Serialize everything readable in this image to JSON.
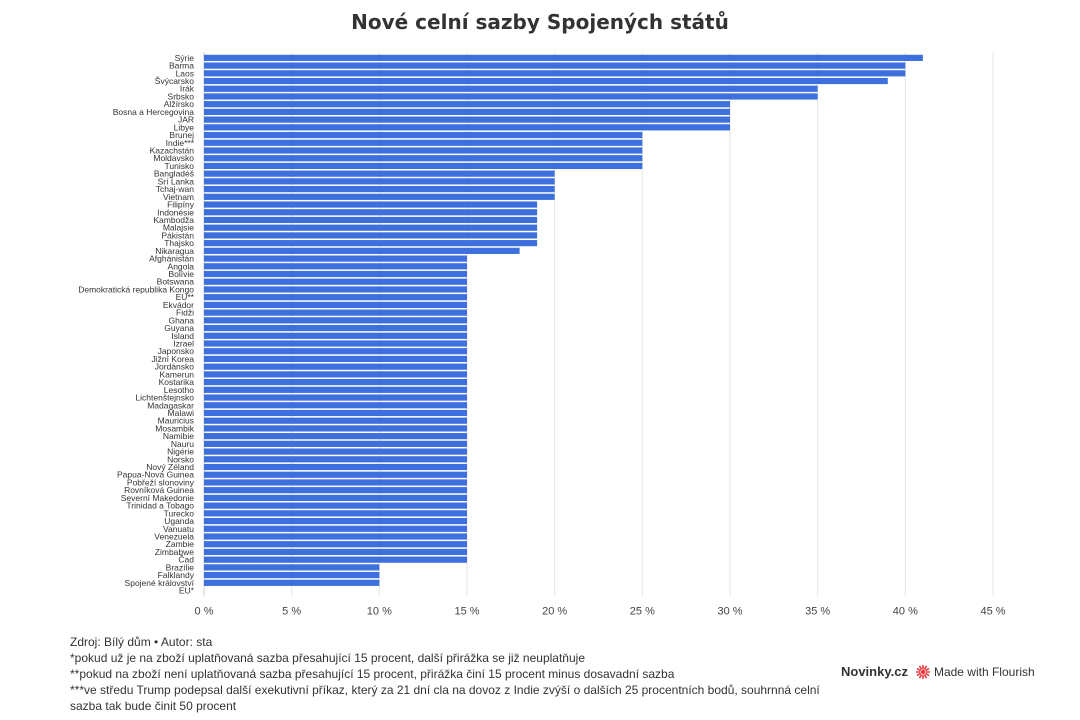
{
  "chart_data": {
    "type": "bar",
    "orientation": "horizontal",
    "title": "Nové celní sazby Spojených států",
    "xlim": [
      0,
      45
    ],
    "ticks": [
      0,
      5,
      10,
      15,
      20,
      25,
      30,
      35,
      40,
      45
    ],
    "tick_labels": [
      "0 %",
      "5 %",
      "10 %",
      "15 %",
      "20 %",
      "25 %",
      "30 %",
      "35 %",
      "40 %",
      "45 %"
    ],
    "grid": true,
    "bar_color": "#3d6fdd",
    "categories": [
      "Sýrie",
      "Barma",
      "Laos",
      "Švýcarsko",
      "Irák",
      "Srbsko",
      "Alžírsko",
      "Bosna a Hercegovina",
      "JAR",
      "Libye",
      "Brunej",
      "Indie***",
      "Kazachstán",
      "Moldavsko",
      "Tunisko",
      "Bangladéš",
      "Srí Lanka",
      "Tchaj-wan",
      "Vietnam",
      "Filipíny",
      "Indonésie",
      "Kambodža",
      "Malajsie",
      "Pákistán",
      "Thajsko",
      "Nikaragua",
      "Afghánistán",
      "Angola",
      "Bolívie",
      "Botswana",
      "Demokratická republika Kongo",
      "EU**",
      "Ekvádor",
      "Fidži",
      "Ghana",
      "Guyana",
      "Island",
      "Izrael",
      "Japonsko",
      "Jižní Korea",
      "Jordánsko",
      "Kamerun",
      "Kostarika",
      "Lesotho",
      "Lichtenštejnsko",
      "Madagaskar",
      "Malawi",
      "Mauricius",
      "Mosambik",
      "Namibie",
      "Nauru",
      "Nigérie",
      "Norsko",
      "Nový Zéland",
      "Papua-Nová Guinea",
      "Pobřeží slonoviny",
      "Rovníková Guinea",
      "Severní Makedonie",
      "Trinidad a Tobago",
      "Turecko",
      "Uganda",
      "Vanuatu",
      "Venezuela",
      "Zambie",
      "Zimbabwe",
      "Čad",
      "Brazílie",
      "Falklandy",
      "Spojené království",
      "EU*"
    ],
    "values": [
      41,
      40,
      40,
      39,
      35,
      35,
      30,
      30,
      30,
      30,
      25,
      25,
      25,
      25,
      25,
      20,
      20,
      20,
      20,
      19,
      19,
      19,
      19,
      19,
      19,
      18,
      15,
      15,
      15,
      15,
      15,
      15,
      15,
      15,
      15,
      15,
      15,
      15,
      15,
      15,
      15,
      15,
      15,
      15,
      15,
      15,
      15,
      15,
      15,
      15,
      15,
      15,
      15,
      15,
      15,
      15,
      15,
      15,
      15,
      15,
      15,
      15,
      15,
      15,
      15,
      15,
      10,
      10,
      10,
      0
    ]
  },
  "footer": {
    "source": "Zdroj: Bílý dům • Autor: sta",
    "note1": "*pokud už je na zboží uplatňovaná sazba přesahující 15 procent, další přirážka se již neuplatňuje",
    "note2": "**pokud na zboží není uplatňovaná sazba přesahující 15 procent, přirážka činí 15 procent minus dosavadní sazba",
    "note3": "***ve středu Trump podepsal další exekutivní příkaz, který za 21 dní cla na dovoz z Indie zvýší o dalších 25 procentních bodů, souhrnná celní sazba tak bude činit 50 procent"
  },
  "brand": {
    "site": "Novinky.cz",
    "made_with": "Made with Flourish",
    "icon": "flourish-icon",
    "icon_color": "#e8383d"
  }
}
